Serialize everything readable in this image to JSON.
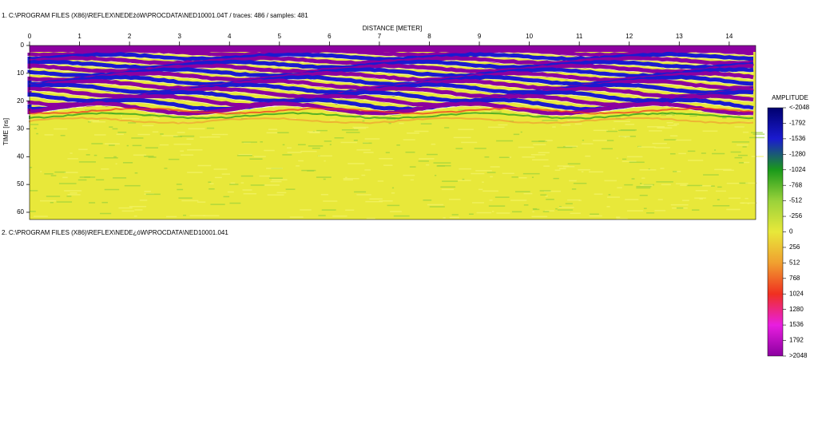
{
  "chart_data": {
    "type": "radargram",
    "header": "1. C:\\PROGRAM FILES (X86)\\REFLEX\\NEDEżóW\\PROCDATA\\NED10001.04T / traces: 486 / samples: 481",
    "footer": "2. C:\\PROGRAM FILES (X86)\\REFLEX\\NEDE¿óW\\PROCDATA\\NED10001.041",
    "xlabel": "DISTANCE [METER]",
    "ylabel": "TIME [ns]",
    "xlim": [
      0,
      14.53
    ],
    "xticks": [
      0,
      1,
      2,
      3,
      4,
      5,
      6,
      7,
      8,
      9,
      10,
      11,
      12,
      13,
      14
    ],
    "ylim": [
      0,
      62.6
    ],
    "yticks": [
      0,
      10,
      20,
      30,
      40,
      50,
      60
    ],
    "colorbar_title": "AMPLITUDE",
    "colorbar_lim": [
      -2048,
      2048
    ],
    "colorbar_ticks": [
      {
        "value": -2048,
        "label": "<-2048"
      },
      -1792,
      -1536,
      -1280,
      -1024,
      -768,
      -512,
      -256,
      0,
      256,
      512,
      768,
      1024,
      1280,
      1536,
      1792,
      {
        "value": 2048,
        "label": ">2048"
      }
    ],
    "colorscale": [
      "#00006e",
      "#1a1ad0",
      "#1a9a1a",
      "#9ad23a",
      "#e8e83a",
      "#f0a030",
      "#f03020",
      "#e81ee0",
      "#8c00a0"
    ]
  }
}
